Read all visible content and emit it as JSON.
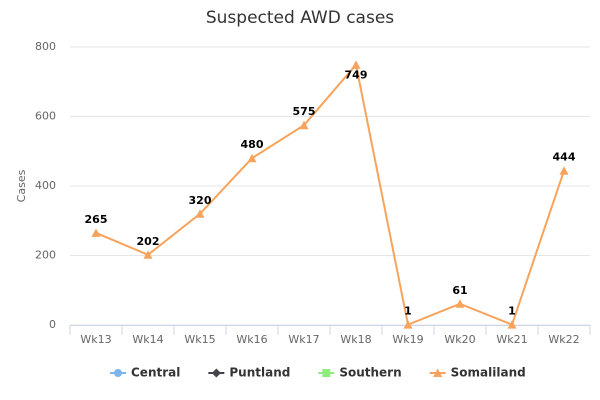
{
  "chart_data": {
    "type": "line",
    "title": "Suspected AWD cases",
    "y_label": "Cases",
    "categories": [
      "Wk13",
      "Wk14",
      "Wk15",
      "Wk16",
      "Wk17",
      "Wk18",
      "Wk19",
      "Wk20",
      "Wk21",
      "Wk22"
    ],
    "series": [
      {
        "name": "Central",
        "color": "#7cb5ec",
        "marker": "circle",
        "values": [
          null,
          null,
          null,
          null,
          null,
          null,
          null,
          null,
          null,
          null
        ]
      },
      {
        "name": "Puntland",
        "color": "#434348",
        "marker": "diamond",
        "values": [
          null,
          null,
          null,
          null,
          null,
          null,
          null,
          null,
          null,
          null
        ]
      },
      {
        "name": "Southern",
        "color": "#90ed7d",
        "marker": "square",
        "values": [
          null,
          null,
          null,
          null,
          null,
          null,
          null,
          null,
          null,
          null
        ]
      },
      {
        "name": "Somaliland",
        "color": "#f7a35c",
        "marker": "triangle",
        "values": [
          265,
          202,
          320,
          480,
          575,
          749,
          1,
          61,
          1,
          444
        ]
      }
    ],
    "ylim": [
      0,
      800
    ],
    "yticks": [
      0,
      200,
      400,
      600,
      800
    ],
    "grid": true,
    "data_labels": true,
    "legend": "bottom"
  }
}
